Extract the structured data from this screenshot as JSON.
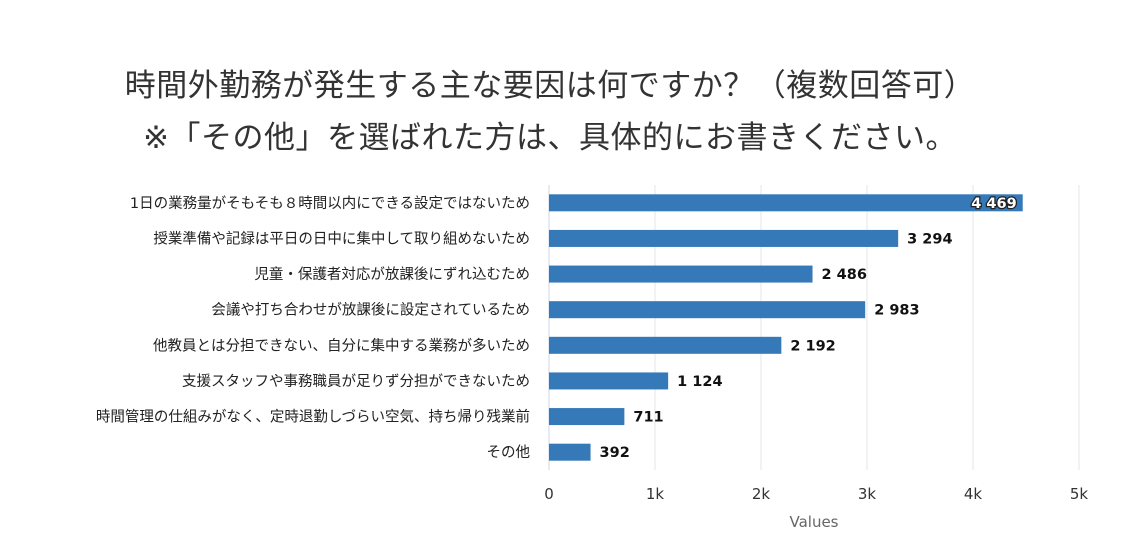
{
  "chart_data": {
    "type": "bar",
    "orientation": "horizontal",
    "title": [
      "時間外勤務が発生する主な要因は何ですか？（複数回答可）",
      "※「その他」を選ばれた方は、具体的にお書きください。"
    ],
    "categories": [
      "1日の業務量がそもそも８時間以内にできる設定ではないため",
      "授業準備や記録は平日の日中に集中して取り組めないため",
      "児童・保護者対応が放課後にずれ込むため",
      "会議や打ち合わせが放課後に設定されているため",
      "他教員とは分担できない、自分に集中する業務が多いため",
      "支援スタッフや事務職員が足りず分担ができないため",
      "時間管理の仕組みがなく、定時退勤しづらい空気、持ち帰り残業前",
      "その他"
    ],
    "values": [
      4469,
      3294,
      2486,
      2983,
      2192,
      1124,
      711,
      392
    ],
    "data_labels": [
      "4 469",
      "3 294",
      "2 486",
      "2 983",
      "2 192",
      "1 124",
      "711",
      "392"
    ],
    "xlabel": "Values",
    "ylabel": "",
    "xlim": [
      0,
      5000
    ],
    "xticks": [
      0,
      1000,
      2000,
      3000,
      4000,
      5000
    ],
    "xtick_labels": [
      "0",
      "1k",
      "2k",
      "3k",
      "4k",
      "5k"
    ],
    "grid": true,
    "bar_color": "#3579b8"
  }
}
